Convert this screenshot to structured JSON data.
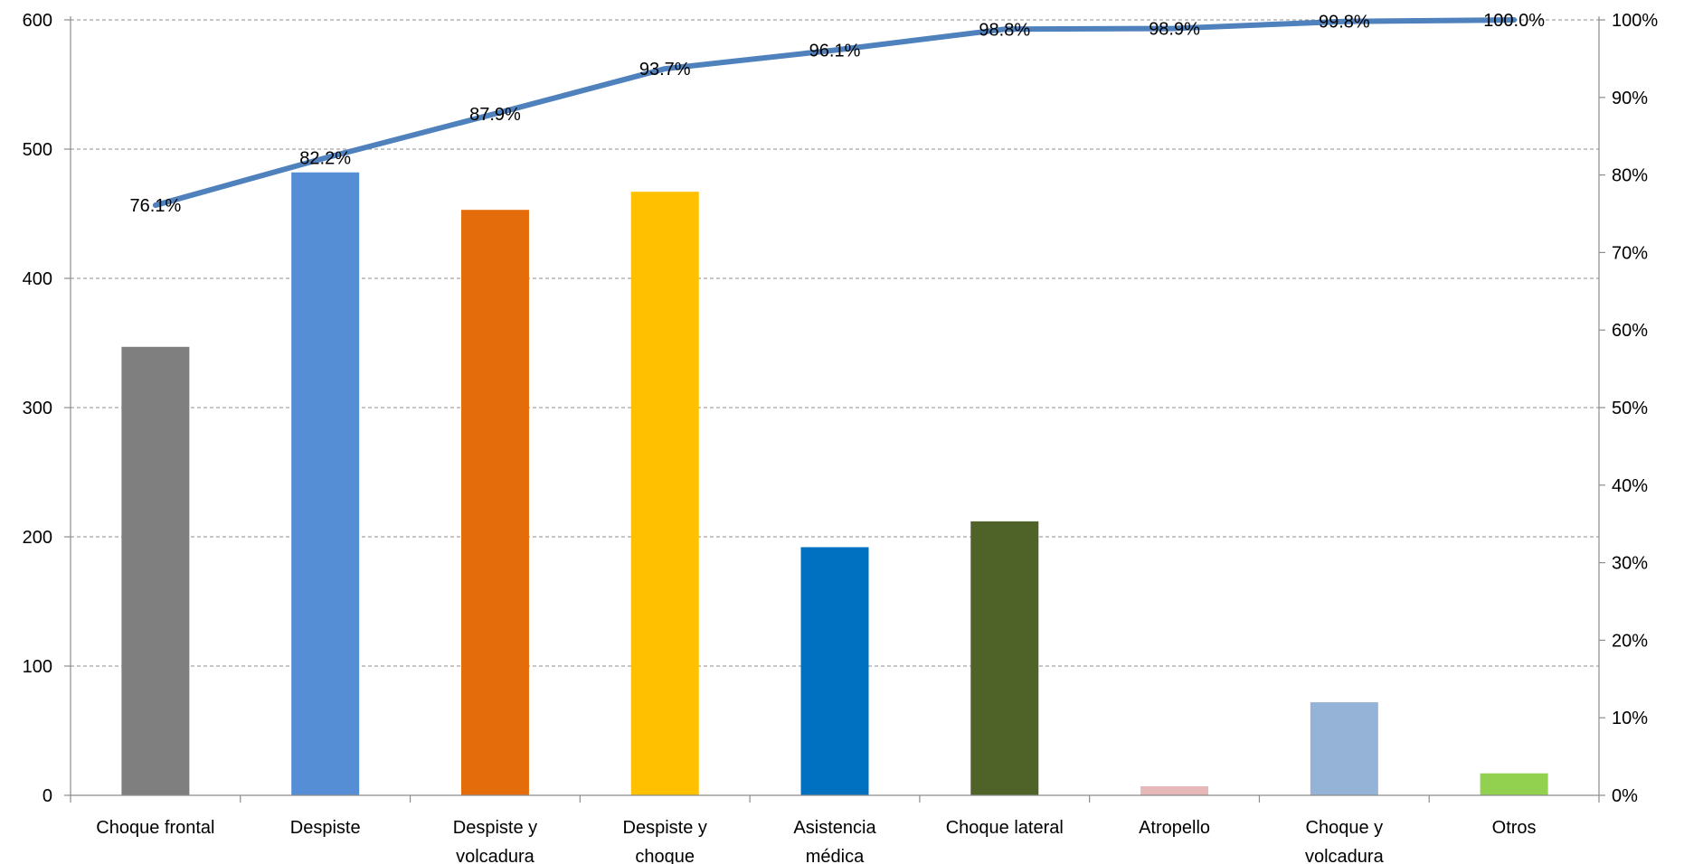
{
  "chart_data": {
    "type": "bar",
    "categories": [
      [
        "Choque frontal"
      ],
      [
        "Despiste"
      ],
      [
        "Despiste y",
        "volcadura"
      ],
      [
        "Despiste y",
        "choque"
      ],
      [
        "Asistencia",
        "médica"
      ],
      [
        "Choque lateral"
      ],
      [
        "Atropello"
      ],
      [
        "Choque y",
        "volcadura"
      ],
      [
        "Otros"
      ]
    ],
    "values": [
      347,
      482,
      453,
      467,
      192,
      212,
      7,
      72,
      17
    ],
    "bar_colors": [
      "#7f7f7f",
      "#558ed5",
      "#e46c0a",
      "#ffc000",
      "#0070c0",
      "#4f6228",
      "#e6b9b8",
      "#95b3d7",
      "#92d050"
    ],
    "cumulative_series": {
      "values": [
        76.1,
        82.2,
        87.9,
        93.7,
        96.1,
        98.8,
        98.9,
        99.8,
        100.0
      ],
      "labels": [
        "76.1%",
        "82.2%",
        "87.9%",
        "93.7%",
        "96.1%",
        "98.8%",
        "98.9%",
        "99.8%",
        "100.0%"
      ],
      "color": "#4f81bd"
    },
    "left_axis": {
      "ylim": [
        0,
        600
      ],
      "ticks": [
        0,
        100,
        200,
        300,
        400,
        500,
        600
      ],
      "tick_labels": [
        "0",
        "100",
        "200",
        "300",
        "400",
        "500",
        "600"
      ]
    },
    "right_axis": {
      "ylim": [
        0,
        100
      ],
      "ticks": [
        0,
        10,
        20,
        30,
        40,
        50,
        60,
        70,
        80,
        90,
        100
      ],
      "tick_labels": [
        "0%",
        "10%",
        "20%",
        "30%",
        "40%",
        "50%",
        "60%",
        "70%",
        "80%",
        "90%",
        "100%"
      ]
    },
    "title": "",
    "xlabel": "",
    "ylabel": "",
    "grid": true,
    "legend": "none"
  }
}
